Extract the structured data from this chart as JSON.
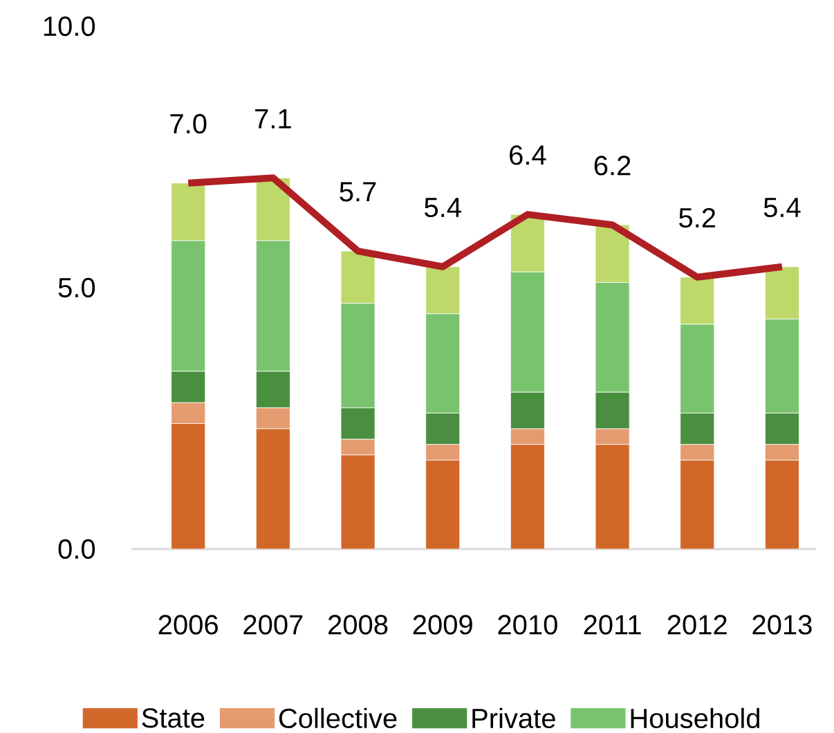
{
  "chart_data": {
    "type": "bar",
    "stacked": true,
    "categories": [
      "2006",
      "2007",
      "2008",
      "2009",
      "2010",
      "2011",
      "2012",
      "2013"
    ],
    "series": [
      {
        "name": "State",
        "color": "#d2672a",
        "values": [
          2.4,
          2.3,
          1.8,
          1.7,
          2.0,
          2.0,
          1.7,
          1.7
        ]
      },
      {
        "name": "Collective",
        "color": "#e49b6f",
        "values": [
          0.4,
          0.4,
          0.3,
          0.3,
          0.3,
          0.3,
          0.3,
          0.3
        ]
      },
      {
        "name": "Private",
        "color": "#4a8f3f",
        "values": [
          0.6,
          0.7,
          0.6,
          0.6,
          0.7,
          0.7,
          0.6,
          0.6
        ]
      },
      {
        "name": "Household",
        "color": "#79c36e",
        "values": [
          2.5,
          2.5,
          2.0,
          1.9,
          2.3,
          2.1,
          1.7,
          1.8
        ]
      },
      {
        "color": "#bed96a",
        "values": [
          1.1,
          1.2,
          1.0,
          0.9,
          1.1,
          1.1,
          0.9,
          1.0
        ]
      },
      {
        "type": "line",
        "color": "#b01f24",
        "values": [
          7.0,
          7.1,
          5.7,
          5.4,
          6.4,
          6.2,
          5.2,
          5.4
        ],
        "value_labels": [
          "7.0",
          "7.1",
          "5.7",
          "5.4",
          "6.4",
          "6.2",
          "5.2",
          "5.4"
        ]
      }
    ],
    "ylim": [
      0,
      10
    ],
    "yticks": [
      {
        "value": 0,
        "label": "0.0"
      },
      {
        "value": 5,
        "label": "5.0"
      },
      {
        "value": 10,
        "label": "10.0"
      }
    ],
    "legend": "bottom"
  }
}
